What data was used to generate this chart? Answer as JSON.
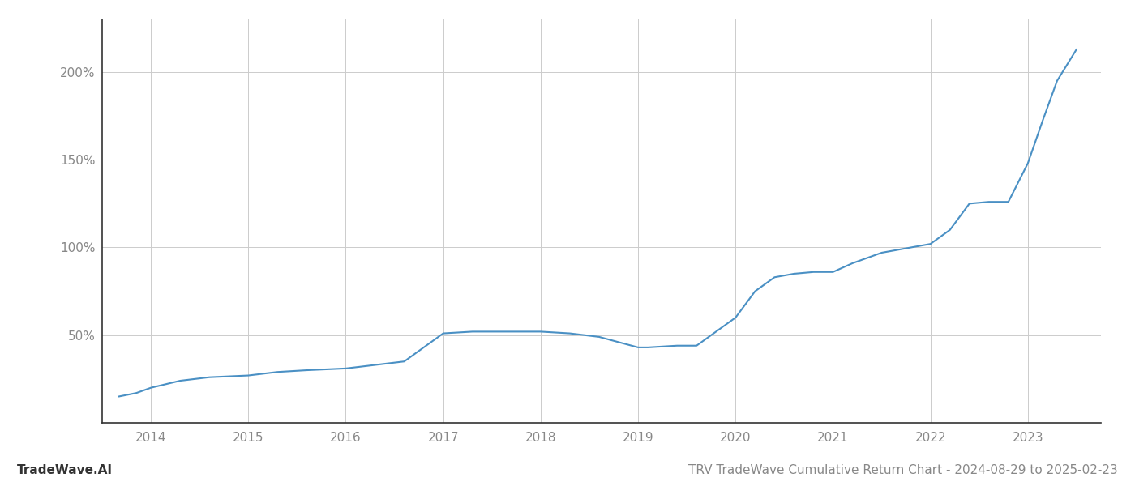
{
  "title_left": "TradeWave.AI",
  "title_right": "TRV TradeWave Cumulative Return Chart - 2024-08-29 to 2025-02-23",
  "line_color": "#4a90c4",
  "background_color": "#ffffff",
  "grid_color": "#cccccc",
  "x_years": [
    2014,
    2015,
    2016,
    2017,
    2018,
    2019,
    2020,
    2021,
    2022,
    2023
  ],
  "x_data": [
    2013.67,
    2013.85,
    2014.0,
    2014.3,
    2014.6,
    2015.0,
    2015.3,
    2015.6,
    2016.0,
    2016.3,
    2016.6,
    2017.0,
    2017.3,
    2017.6,
    2018.0,
    2018.3,
    2018.6,
    2018.8,
    2019.0,
    2019.1,
    2019.4,
    2019.6,
    2020.0,
    2020.2,
    2020.4,
    2020.6,
    2020.8,
    2021.0,
    2021.2,
    2021.5,
    2021.8,
    2022.0,
    2022.2,
    2022.4,
    2022.6,
    2022.8,
    2023.0,
    2023.15,
    2023.3,
    2023.5
  ],
  "y_data": [
    15,
    17,
    20,
    24,
    26,
    27,
    29,
    30,
    31,
    33,
    35,
    51,
    52,
    52,
    52,
    51,
    49,
    46,
    43,
    43,
    44,
    44,
    60,
    75,
    83,
    85,
    86,
    86,
    91,
    97,
    100,
    102,
    110,
    125,
    126,
    126,
    148,
    172,
    195,
    213
  ],
  "yticks": [
    50,
    100,
    150,
    200
  ],
  "ytick_labels": [
    "50%",
    "100%",
    "150%",
    "200%"
  ],
  "ylim": [
    0,
    230
  ],
  "xlim": [
    2013.5,
    2023.75
  ],
  "ylabel_color": "#888888",
  "spine_color": "#333333",
  "tick_color": "#888888"
}
